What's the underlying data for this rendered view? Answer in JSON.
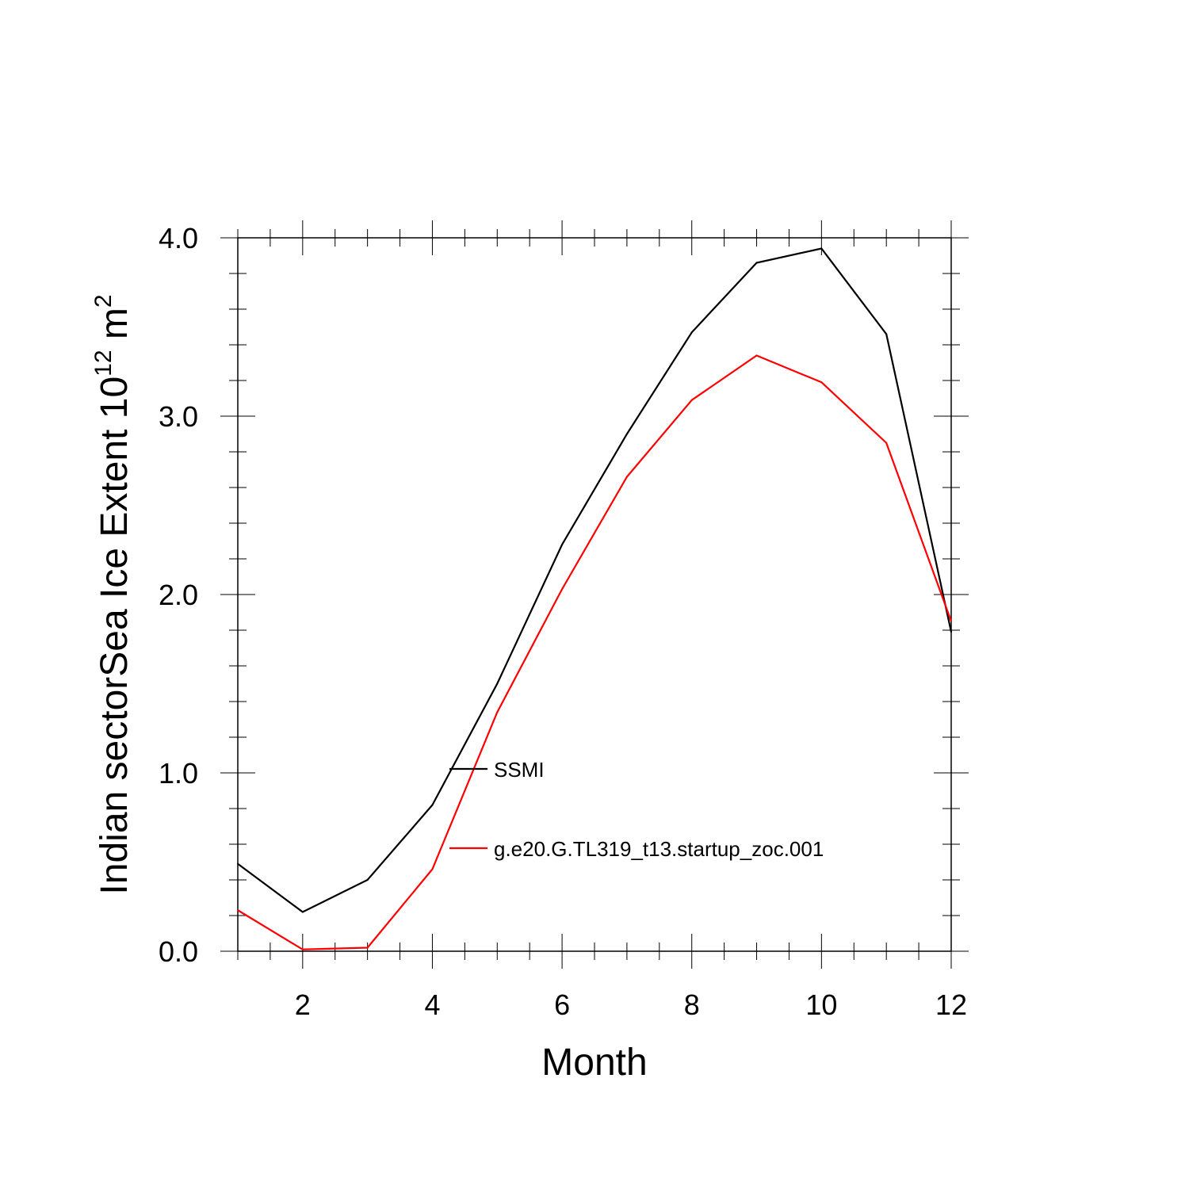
{
  "chart_data": {
    "type": "line",
    "title": "",
    "xlabel": "Month",
    "ylabel": "Indian sectorSea Ice Extent 10",
    "ylabel_sup1": "12",
    "ylabel_unit": " m",
    "ylabel_sup2": "2",
    "xlim": [
      1,
      12
    ],
    "ylim": [
      0.0,
      4.0
    ],
    "x": [
      1,
      2,
      3,
      4,
      5,
      6,
      7,
      8,
      9,
      10,
      11,
      12
    ],
    "x_ticks": [
      2,
      4,
      6,
      8,
      10,
      12
    ],
    "x_tick_labels": [
      "2",
      "4",
      "6",
      "8",
      "10",
      "12"
    ],
    "y_ticks": [
      0.0,
      1.0,
      2.0,
      3.0,
      4.0
    ],
    "y_tick_labels": [
      "0.0",
      "1.0",
      "2.0",
      "3.0",
      "4.0"
    ],
    "grid": false,
    "legend_position": "inside-lower-middle",
    "series": [
      {
        "name": "SSMI",
        "color": "#000000",
        "values": [
          0.49,
          0.22,
          0.4,
          0.82,
          1.5,
          2.28,
          2.9,
          3.47,
          3.86,
          3.94,
          3.46,
          1.79
        ]
      },
      {
        "name": "g.e20.G.TL319_t13.startup_zoc.001",
        "color": "#ff0000",
        "values": [
          0.23,
          0.01,
          0.02,
          0.46,
          1.34,
          2.03,
          2.66,
          3.09,
          3.34,
          3.19,
          2.85,
          1.85
        ]
      }
    ]
  }
}
